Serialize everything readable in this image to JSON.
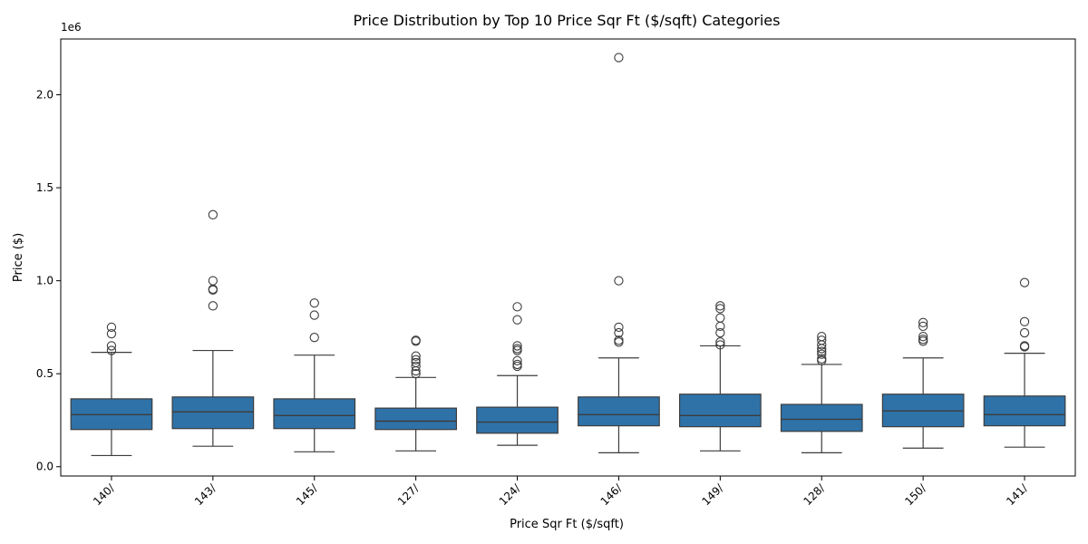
{
  "chart_data": {
    "type": "box",
    "title": "Price Distribution by Top 10 Price Sqr Ft ($/sqft) Categories",
    "xlabel": "Price Sqr Ft ($/sqft)",
    "ylabel": "Price ($)",
    "y_offset_label": "1e6",
    "ylim": [
      -0.05,
      2.3
    ],
    "y_ticks": [
      0.0,
      0.5,
      1.0,
      1.5,
      2.0
    ],
    "y_tick_labels": [
      "0.0",
      "0.5",
      "1.0",
      "1.5",
      "2.0"
    ],
    "box_color": "#2f72a8",
    "line_color": "#3d3d3d",
    "categories": [
      "140/",
      "143/",
      "145/",
      "127/",
      "124/",
      "146/",
      "149/",
      "128/",
      "150/",
      "141/"
    ],
    "boxes": [
      {
        "category": "140/",
        "whisker_low": 0.06,
        "q1": 0.2,
        "median": 0.28,
        "q3": 0.365,
        "whisker_high": 0.615,
        "fliers": [
          0.625,
          0.65,
          0.715,
          0.75
        ]
      },
      {
        "category": "143/",
        "whisker_low": 0.11,
        "q1": 0.205,
        "median": 0.295,
        "q3": 0.375,
        "whisker_high": 0.625,
        "fliers": [
          0.865,
          0.95,
          0.955,
          1.0,
          1.355
        ]
      },
      {
        "category": "145/",
        "whisker_low": 0.08,
        "q1": 0.205,
        "median": 0.275,
        "q3": 0.365,
        "whisker_high": 0.6,
        "fliers": [
          0.695,
          0.815,
          0.88
        ]
      },
      {
        "category": "127/",
        "whisker_low": 0.085,
        "q1": 0.2,
        "median": 0.245,
        "q3": 0.315,
        "whisker_high": 0.48,
        "fliers": [
          0.5,
          0.515,
          0.54,
          0.56,
          0.575,
          0.595,
          0.675,
          0.68
        ]
      },
      {
        "category": "124/",
        "whisker_low": 0.115,
        "q1": 0.18,
        "median": 0.24,
        "q3": 0.32,
        "whisker_high": 0.49,
        "fliers": [
          0.54,
          0.55,
          0.57,
          0.625,
          0.635,
          0.65,
          0.79,
          0.86
        ]
      },
      {
        "category": "146/",
        "whisker_low": 0.075,
        "q1": 0.22,
        "median": 0.28,
        "q3": 0.375,
        "whisker_high": 0.585,
        "fliers": [
          0.67,
          0.68,
          0.72,
          0.75,
          1.0,
          2.2
        ]
      },
      {
        "category": "149/",
        "whisker_low": 0.085,
        "q1": 0.215,
        "median": 0.275,
        "q3": 0.39,
        "whisker_high": 0.65,
        "fliers": [
          0.655,
          0.67,
          0.72,
          0.755,
          0.8,
          0.85,
          0.865
        ]
      },
      {
        "category": "128/",
        "whisker_low": 0.075,
        "q1": 0.19,
        "median": 0.255,
        "q3": 0.335,
        "whisker_high": 0.55,
        "fliers": [
          0.57,
          0.58,
          0.605,
          0.62,
          0.635,
          0.655,
          0.68,
          0.7
        ]
      },
      {
        "category": "150/",
        "whisker_low": 0.1,
        "q1": 0.215,
        "median": 0.3,
        "q3": 0.39,
        "whisker_high": 0.585,
        "fliers": [
          0.675,
          0.685,
          0.7,
          0.755,
          0.775
        ]
      },
      {
        "category": "141/",
        "whisker_low": 0.105,
        "q1": 0.22,
        "median": 0.28,
        "q3": 0.38,
        "whisker_high": 0.61,
        "fliers": [
          0.645,
          0.65,
          0.72,
          0.78,
          0.99
        ]
      }
    ]
  }
}
